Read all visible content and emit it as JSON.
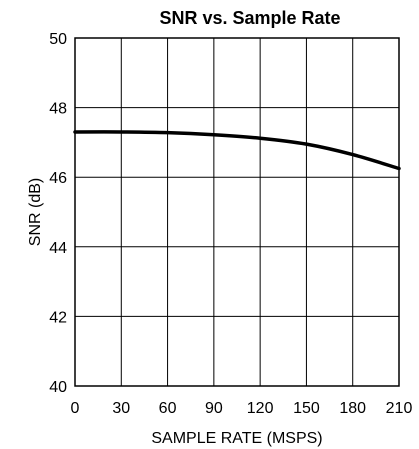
{
  "chart_data": {
    "type": "line",
    "title": "SNR vs. Sample Rate",
    "xlabel": "SAMPLE RATE (MSPS)",
    "ylabel": "SNR (dB)",
    "xlim": [
      0,
      210
    ],
    "ylim": [
      40,
      50
    ],
    "x_ticks": [
      0,
      30,
      60,
      90,
      120,
      150,
      180,
      210
    ],
    "y_ticks": [
      40,
      42,
      44,
      46,
      48,
      50
    ],
    "y_tick_labels": [
      "40",
      "42",
      "44",
      "46",
      "48",
      "50"
    ],
    "x_tick_labels": [
      "0",
      "30",
      "60",
      "90",
      "120",
      "150",
      "180",
      "210"
    ],
    "grid": true,
    "series": [
      {
        "color": "#000000",
        "x": [
          0,
          30,
          60,
          90,
          120,
          150,
          180,
          210
        ],
        "y": [
          47.3,
          47.3,
          47.28,
          47.22,
          47.12,
          46.95,
          46.65,
          46.25
        ]
      }
    ]
  }
}
